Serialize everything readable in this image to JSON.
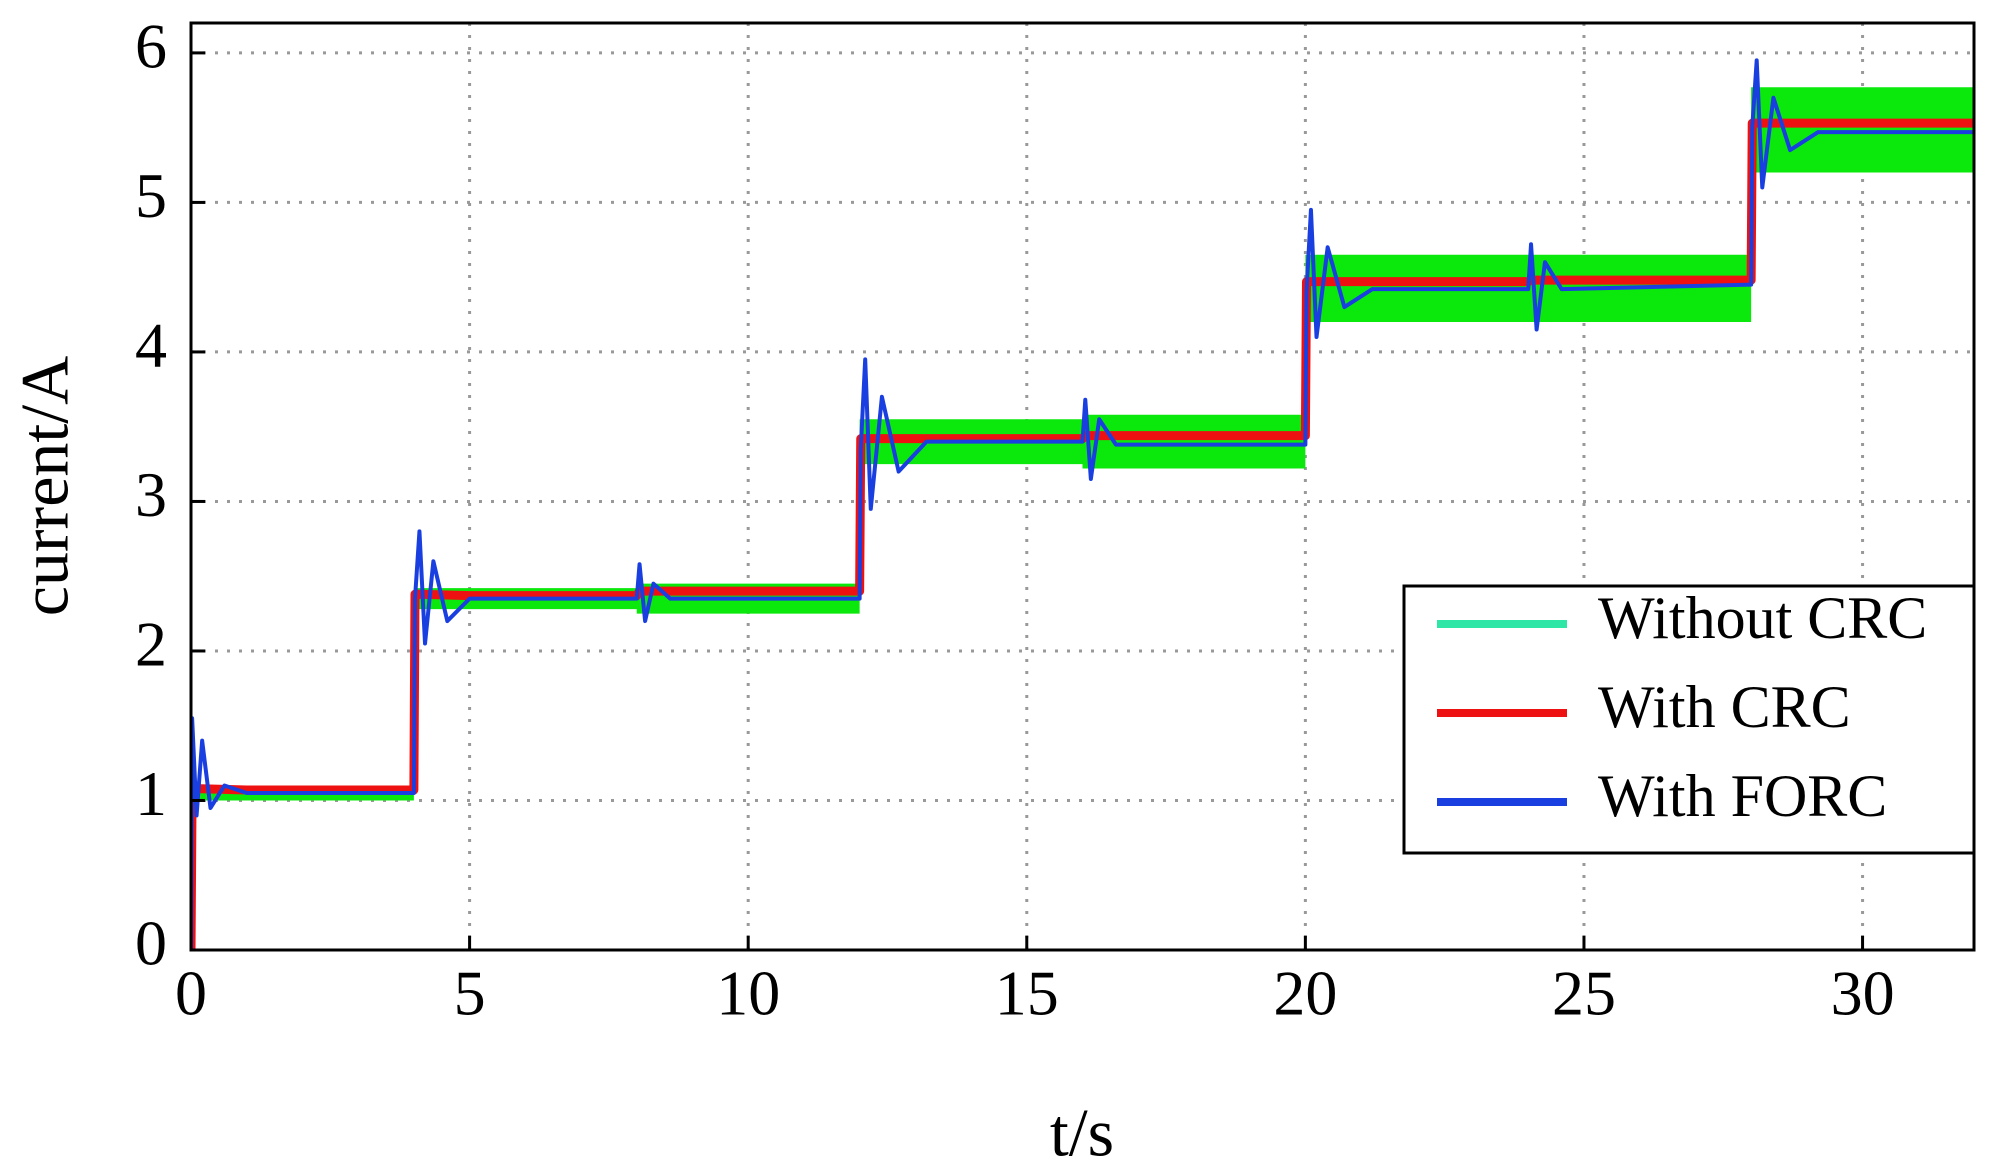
{
  "chart_data": {
    "type": "line",
    "xlabel": "t/s",
    "ylabel": "current/A",
    "xlim": [
      0,
      32
    ],
    "ylim": [
      0,
      6.2
    ],
    "xticks": [
      0,
      5,
      10,
      15,
      20,
      25,
      30
    ],
    "yticks": [
      0,
      1,
      2,
      3,
      4,
      5,
      6
    ],
    "grid": true,
    "legend": "lower right",
    "series": [
      {
        "name": "Without CRC",
        "color": "#2ee6a6",
        "fill": "#0be80b",
        "x": [
          0,
          4,
          4,
          8,
          8,
          12,
          12,
          16,
          16,
          20,
          20,
          28,
          28,
          32
        ],
        "lower": [
          1.0,
          1.0,
          2.28,
          2.28,
          2.25,
          2.25,
          3.25,
          3.25,
          3.22,
          3.22,
          4.2,
          4.2,
          5.2,
          5.2
        ],
        "upper": [
          1.1,
          1.1,
          2.42,
          2.42,
          2.45,
          2.45,
          3.55,
          3.55,
          3.58,
          3.58,
          4.65,
          4.65,
          5.77,
          5.77
        ]
      },
      {
        "name": "With CRC",
        "color": "#ee1111",
        "x": [
          0,
          0.02,
          1,
          4,
          4.02,
          5,
          8,
          8.05,
          12,
          12.02,
          13,
          16,
          16.05,
          20,
          20.02,
          21,
          24,
          24.05,
          28,
          28.02,
          29,
          32
        ],
        "values": [
          0,
          1.08,
          1.07,
          1.07,
          2.38,
          2.37,
          2.37,
          2.4,
          2.4,
          3.42,
          3.42,
          3.42,
          3.44,
          3.44,
          4.47,
          4.47,
          4.47,
          4.48,
          4.48,
          5.53,
          5.53,
          5.53
        ]
      },
      {
        "name": "With FORC",
        "color": "#1a3fe0",
        "x": [
          0,
          0.02,
          0.1,
          0.2,
          0.35,
          0.6,
          1,
          4,
          4.02,
          4.1,
          4.2,
          4.35,
          4.6,
          5,
          8,
          8.05,
          8.15,
          8.3,
          8.6,
          12,
          12.02,
          12.1,
          12.2,
          12.4,
          12.7,
          13.2,
          16,
          16.05,
          16.15,
          16.3,
          16.6,
          20,
          20.02,
          20.1,
          20.2,
          20.4,
          20.7,
          21.2,
          24,
          24.05,
          24.15,
          24.3,
          24.6,
          28,
          28.02,
          28.1,
          28.2,
          28.4,
          28.7,
          29.2,
          32
        ],
        "values": [
          0,
          1.55,
          0.9,
          1.4,
          0.95,
          1.1,
          1.05,
          1.05,
          2.35,
          2.8,
          2.05,
          2.6,
          2.2,
          2.35,
          2.35,
          2.58,
          2.2,
          2.45,
          2.35,
          2.35,
          3.35,
          3.95,
          2.95,
          3.7,
          3.2,
          3.4,
          3.4,
          3.68,
          3.15,
          3.55,
          3.38,
          3.38,
          4.4,
          4.95,
          4.1,
          4.7,
          4.3,
          4.42,
          4.42,
          4.72,
          4.15,
          4.6,
          4.42,
          4.45,
          5.5,
          5.95,
          5.1,
          5.7,
          5.35,
          5.47,
          5.47
        ]
      }
    ]
  }
}
